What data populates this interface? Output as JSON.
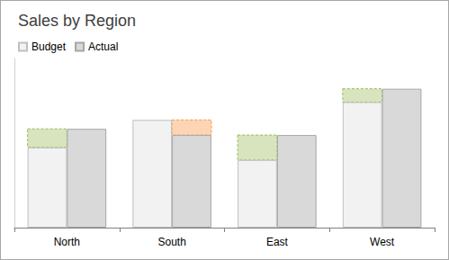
{
  "chart_data": {
    "type": "bar",
    "title": "Sales by Region",
    "categories": [
      "North",
      "South",
      "East",
      "West"
    ],
    "series": [
      {
        "name": "Budget",
        "color": "#f2f2f2",
        "values": [
          90,
          121,
          76,
          141
        ]
      },
      {
        "name": "Actual",
        "color": "#d9d9d9",
        "values": [
          111,
          104,
          104,
          156
        ]
      }
    ],
    "ylim": [
      0,
      190
    ],
    "yticks": [
      0
    ],
    "grid": false,
    "legend": "top-left",
    "tick_labels": "x"
  }
}
